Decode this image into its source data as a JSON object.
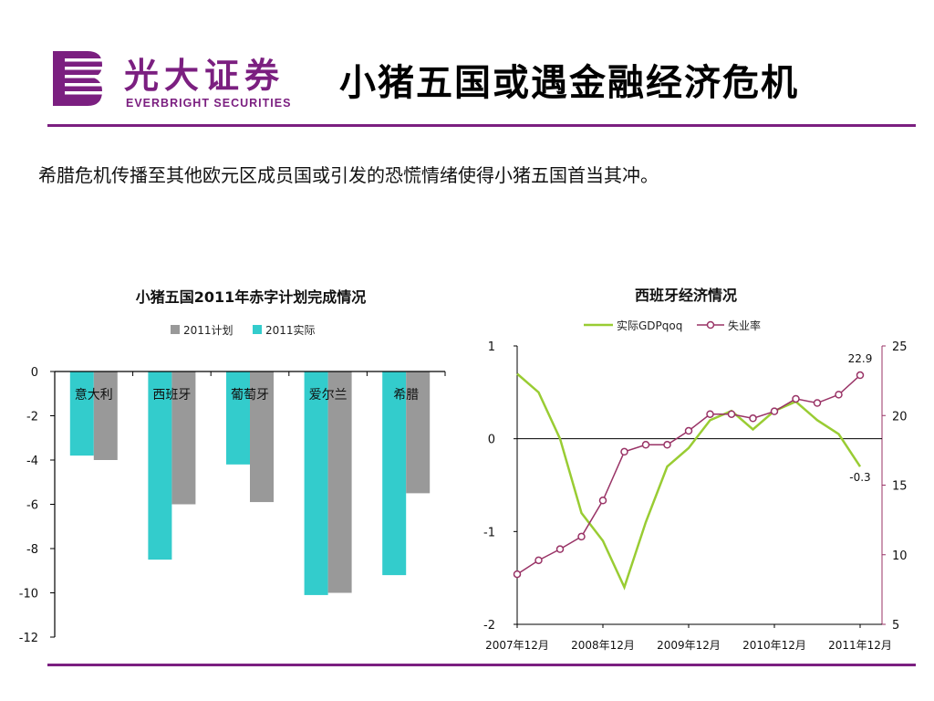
{
  "header": {
    "logo_cn": "光大证券",
    "logo_en": "EVERBRIGHT SECURITIES",
    "title": "小猪五国或遇金融经济危机"
  },
  "subtitle": "希腊危机传播至其他欧元区成员国或引发的恐慌情绪使得小猪五国首当其冲。",
  "colors": {
    "brand": "#7b1f80",
    "plan": "#999999",
    "actual": "#33cccc",
    "gdp": "#99cc33",
    "unemployment": "#993366"
  },
  "chart_data": [
    {
      "type": "bar",
      "title": "小猪五国2011年赤字计划完成情况",
      "categories": [
        "意大利",
        "西班牙",
        "葡萄牙",
        "爱尔兰",
        "希腊"
      ],
      "series": [
        {
          "name": "2011计划",
          "values": [
            -4.0,
            -6.0,
            -5.9,
            -10.0,
            -5.5
          ]
        },
        {
          "name": "2011实际",
          "values": [
            -3.8,
            -8.5,
            -4.2,
            -10.1,
            -9.2
          ]
        }
      ],
      "ylim": [
        -12,
        0
      ],
      "yticks": [
        "0",
        "-2",
        "-4",
        "-6",
        "-8",
        "-10",
        "-12"
      ],
      "legend": "top"
    },
    {
      "type": "line",
      "title": "西班牙经济情况",
      "x": [
        "2007年12月",
        "2008年3月",
        "2008年6月",
        "2008年9月",
        "2008年12月",
        "2009年3月",
        "2009年6月",
        "2009年9月",
        "2009年12月",
        "2010年3月",
        "2010年6月",
        "2010年9月",
        "2010年12月",
        "2011年3月",
        "2011年6月",
        "2011年9月",
        "2011年12月"
      ],
      "xticks": [
        "2007年12月",
        "2008年12月",
        "2009年12月",
        "2010年12月",
        "2011年12月"
      ],
      "series": [
        {
          "name": "实际GDPqoq",
          "axis": "left",
          "values": [
            0.7,
            0.5,
            0.0,
            -0.8,
            -1.1,
            -1.6,
            -0.9,
            -0.3,
            -0.1,
            0.2,
            0.3,
            0.1,
            0.3,
            0.4,
            0.2,
            0.05,
            -0.3
          ]
        },
        {
          "name": "失业率",
          "axis": "right",
          "values": [
            8.6,
            9.6,
            10.4,
            11.3,
            13.9,
            17.4,
            17.9,
            17.9,
            18.9,
            20.1,
            20.1,
            19.8,
            20.3,
            21.2,
            20.9,
            21.5,
            22.9
          ]
        }
      ],
      "ylim_left": [
        -2,
        1
      ],
      "yticks_left": [
        "1",
        "0",
        "-1",
        "-2"
      ],
      "ylim_right": [
        5,
        25
      ],
      "yticks_right": [
        "25",
        "20",
        "15",
        "10",
        "5"
      ],
      "annotations": [
        "22.9",
        "-0.3"
      ],
      "legend": "top"
    }
  ]
}
